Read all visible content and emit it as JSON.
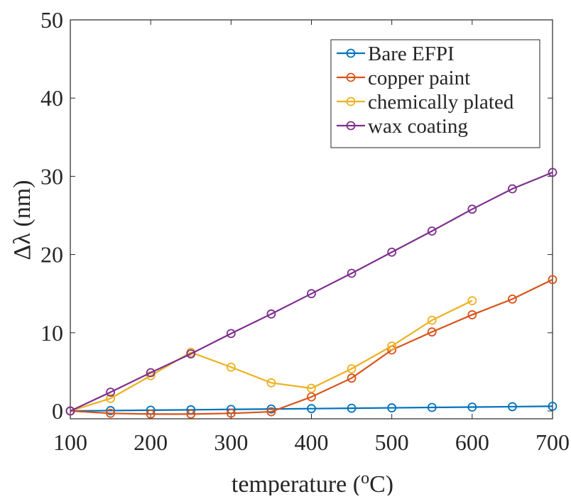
{
  "chart_data": {
    "type": "line",
    "xlabel": "temperature (",
    "xlabel_sup": "o",
    "xlabel_tail": "C)",
    "ylabel": "Δλ (nm)",
    "xlim": [
      100,
      700
    ],
    "ylim": [
      -1,
      50
    ],
    "xticks": [
      100,
      200,
      300,
      400,
      500,
      600,
      700
    ],
    "yticks": [
      0,
      10,
      20,
      30,
      40,
      50
    ],
    "grid": false,
    "legend_position": "top-right",
    "series": [
      {
        "name": "Bare EFPI",
        "color": "#0072BD",
        "x": [
          100,
          150,
          200,
          250,
          300,
          350,
          400,
          450,
          500,
          550,
          600,
          650,
          700
        ],
        "y": [
          0,
          0.05,
          0.1,
          0.15,
          0.2,
          0.25,
          0.3,
          0.35,
          0.4,
          0.45,
          0.5,
          0.55,
          0.6
        ]
      },
      {
        "name": "copper paint",
        "color": "#D95319",
        "x": [
          100,
          150,
          200,
          250,
          300,
          350,
          400,
          450,
          500,
          550,
          600,
          650,
          700
        ],
        "y": [
          0,
          -0.3,
          -0.4,
          -0.4,
          -0.3,
          -0.1,
          1.8,
          4.2,
          7.8,
          10.1,
          12.3,
          14.3,
          16.8
        ]
      },
      {
        "name": "chemically plated",
        "color": "#EDB120",
        "x": [
          100,
          150,
          200,
          250,
          300,
          350,
          400,
          450,
          500,
          550,
          600
        ],
        "y": [
          0,
          1.6,
          4.5,
          7.5,
          5.6,
          3.6,
          2.9,
          5.4,
          8.3,
          11.6,
          14.1
        ]
      },
      {
        "name": "wax coating",
        "color": "#7E2F8E",
        "x": [
          100,
          150,
          200,
          250,
          300,
          350,
          400,
          450,
          500,
          550,
          600,
          650,
          700
        ],
        "y": [
          0,
          2.4,
          4.9,
          7.3,
          9.9,
          12.4,
          15.0,
          17.6,
          20.3,
          23.0,
          25.8,
          28.4,
          30.5
        ]
      }
    ]
  }
}
